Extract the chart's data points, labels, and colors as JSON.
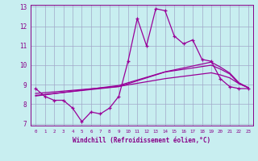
{
  "xlabel": "Windchill (Refroidissement éolien,°C)",
  "x_hours": [
    0,
    1,
    2,
    3,
    4,
    5,
    6,
    7,
    8,
    9,
    10,
    11,
    12,
    13,
    14,
    15,
    16,
    17,
    18,
    19,
    20,
    21,
    22,
    23
  ],
  "main_line": [
    8.8,
    8.4,
    8.2,
    8.2,
    7.8,
    7.1,
    7.6,
    7.5,
    7.8,
    8.4,
    10.2,
    12.4,
    11.0,
    12.9,
    12.8,
    11.5,
    11.1,
    11.3,
    10.3,
    10.2,
    9.3,
    8.9,
    8.8,
    8.8
  ],
  "regression_lines": [
    [
      8.45,
      8.5,
      8.55,
      8.6,
      8.65,
      8.7,
      8.75,
      8.8,
      8.85,
      8.9,
      9.05,
      9.2,
      9.35,
      9.5,
      9.65,
      9.72,
      9.79,
      9.86,
      9.93,
      10.0,
      9.8,
      9.55,
      9.05,
      8.85
    ],
    [
      8.42,
      8.48,
      8.54,
      8.6,
      8.66,
      8.72,
      8.78,
      8.84,
      8.9,
      8.96,
      9.1,
      9.24,
      9.38,
      9.52,
      9.66,
      9.76,
      9.86,
      9.96,
      10.06,
      10.16,
      9.9,
      9.6,
      9.1,
      8.85
    ],
    [
      8.55,
      8.59,
      8.63,
      8.67,
      8.71,
      8.75,
      8.79,
      8.83,
      8.87,
      8.91,
      8.99,
      9.07,
      9.15,
      9.23,
      9.31,
      9.37,
      9.43,
      9.49,
      9.55,
      9.61,
      9.5,
      9.35,
      9.05,
      8.85
    ]
  ],
  "line_color": "#990099",
  "bg_color": "#c8eef0",
  "grid_color": "#a0a8c8",
  "text_color": "#880088",
  "ylim": [
    6.9,
    13.1
  ],
  "yticks": [
    7,
    8,
    9,
    10,
    11,
    12,
    13
  ],
  "xlim": [
    -0.5,
    23.5
  ]
}
